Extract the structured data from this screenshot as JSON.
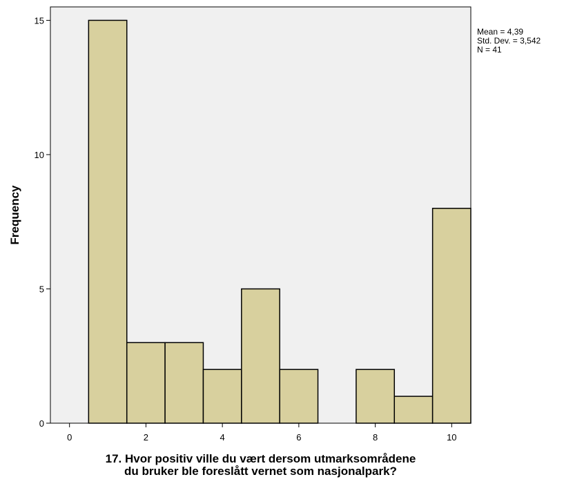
{
  "chart_data": {
    "type": "bar",
    "subtype": "histogram",
    "bin_width": 1,
    "bins": [
      1,
      2,
      3,
      4,
      5,
      6,
      7,
      8,
      9,
      10
    ],
    "values": [
      15,
      3,
      3,
      2,
      5,
      2,
      0,
      2,
      1,
      8
    ],
    "xlim": [
      -0.5,
      10.5
    ],
    "ylim": [
      0,
      15.5
    ],
    "x_ticks": [
      "0",
      "2",
      "4",
      "6",
      "8",
      "10"
    ],
    "y_ticks": [
      "0",
      "5",
      "10",
      "15"
    ],
    "ylabel": "Frequency",
    "xlabel_lines": [
      "17. Hvor positiv ville du vært dersom utmarksområdene",
      "du bruker ble foreslått vernet som nasjonalpark?"
    ],
    "stats": [
      "Mean = 4,39",
      "Std. Dev. = 3,542",
      "N = 41"
    ],
    "grid": false,
    "colors": {
      "bar_fill": "#d8d09e",
      "bar_stroke": "#000000",
      "plot_background": "#f0f0f0"
    }
  }
}
